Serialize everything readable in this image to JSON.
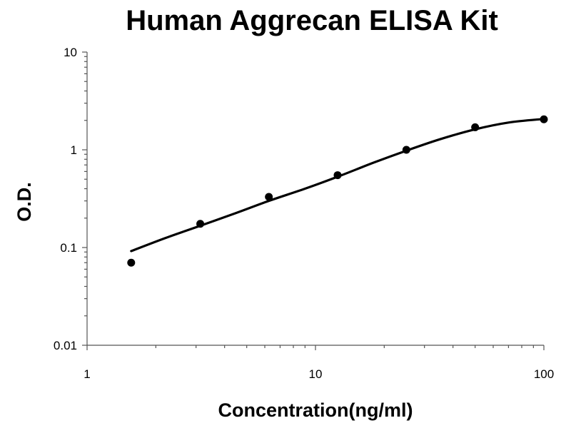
{
  "chart_data": {
    "type": "scatter",
    "title": "Human Aggrecan ELISA Kit",
    "xlabel": "Concentration(ng/ml)",
    "ylabel": "O.D.",
    "x_scale": "log",
    "y_scale": "log",
    "xlim": [
      1,
      100
    ],
    "ylim": [
      0.01,
      10
    ],
    "x_ticks": [
      1,
      10,
      100
    ],
    "x_tick_labels": [
      "1",
      "10",
      "100"
    ],
    "y_ticks": [
      0.01,
      0.1,
      1,
      10
    ],
    "y_tick_labels": [
      "0.01",
      "0.1",
      "1",
      "10"
    ],
    "grid": false,
    "series": [
      {
        "points": [
          {
            "x": 1.56,
            "y": 0.07
          },
          {
            "x": 3.13,
            "y": 0.175
          },
          {
            "x": 6.25,
            "y": 0.33
          },
          {
            "x": 12.5,
            "y": 0.55
          },
          {
            "x": 25,
            "y": 1.0
          },
          {
            "x": 50,
            "y": 1.7
          },
          {
            "x": 100,
            "y": 2.05
          }
        ]
      }
    ],
    "fit_curve": [
      {
        "x": 1.56,
        "y": 0.092
      },
      {
        "x": 2.2,
        "y": 0.125
      },
      {
        "x": 3.13,
        "y": 0.167
      },
      {
        "x": 4.5,
        "y": 0.226
      },
      {
        "x": 6.25,
        "y": 0.3
      },
      {
        "x": 9,
        "y": 0.4
      },
      {
        "x": 12.5,
        "y": 0.53
      },
      {
        "x": 18,
        "y": 0.74
      },
      {
        "x": 25,
        "y": 0.98
      },
      {
        "x": 35,
        "y": 1.28
      },
      {
        "x": 50,
        "y": 1.62
      },
      {
        "x": 70,
        "y": 1.9
      },
      {
        "x": 100,
        "y": 2.07
      }
    ]
  }
}
